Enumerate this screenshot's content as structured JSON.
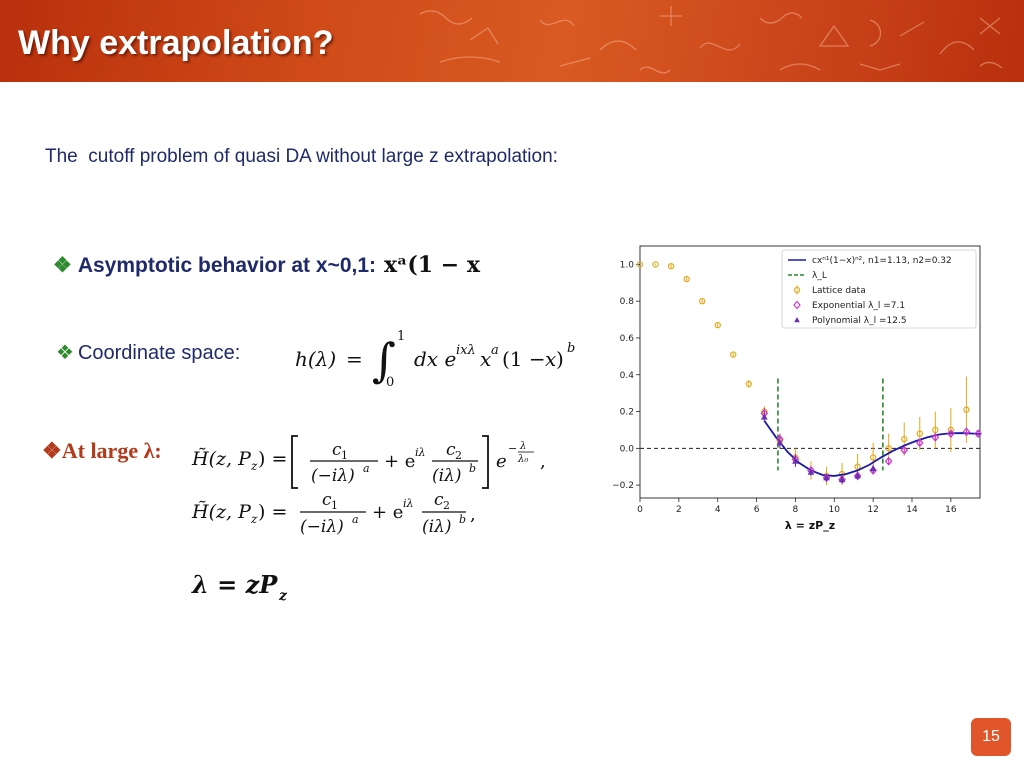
{
  "slide": {
    "title": "Why extrapolation?",
    "intro": "The  cutoff problem of quasi DA without large z extrapolation:",
    "page_number": "15"
  },
  "bullets": {
    "marker": "❖",
    "asymptotic_label": "Asymptotic behavior at x~0,1:",
    "asymptotic_expr": "xᵃ(1 − x",
    "coordinate_label": "Coordinate space:",
    "large_lambda_label": "At large λ:"
  },
  "equations": {
    "coordinate_space": "h(λ) = ∫₀¹ dx e^{ixλ} x^a (1−x)^b",
    "large_lambda_1": "H̃(z,P_z) = [ c₁/(−iλ)^a + e^{iλ} c₂/(iλ)^b ] e^{−λ/λ₀},",
    "large_lambda_2": "H̃(z,P_z) = c₁/(−iλ)^a + e^{iλ} c₂/(iλ)^b,",
    "lambda_def": "λ = zP_z"
  },
  "colors": {
    "banner": "#c9431a",
    "text_blue": "#1f2a6b",
    "marker_green": "#2f8a2f",
    "large_lambda_red": "#b33a1a",
    "page_box": "#e0562a",
    "fit_curve": "#1a1aa8",
    "lambda_l": "#2a8a2a",
    "lattice": "#e6a817",
    "exponential": "#cc33cc",
    "polynomial": "#6b2fb3"
  },
  "chart_data": {
    "type": "scatter",
    "xlabel": "λ = zP_z",
    "ylabel": "",
    "xlim": [
      0,
      17.5
    ],
    "ylim": [
      -0.27,
      1.1
    ],
    "x_ticks": [
      0,
      2,
      4,
      6,
      8,
      10,
      12,
      14,
      16
    ],
    "y_ticks": [
      1.0,
      0.8,
      0.6,
      0.4,
      0.2,
      0.0,
      -0.2
    ],
    "grid": false,
    "legend_position": "top-right",
    "legend": [
      "cxⁿ¹(1−x)ⁿ², n1=1.13, n2=0.32",
      "λ_L",
      "Lattice data",
      "Exponential λ_l =7.1",
      "Polynomial λ_l =12.5"
    ],
    "lattice": {
      "x": [
        0.0,
        0.8,
        1.6,
        2.4,
        3.2,
        4.0,
        4.8,
        5.6,
        6.4,
        7.2,
        8.0,
        8.8,
        9.6,
        10.4,
        11.2,
        12.0,
        12.8,
        13.6,
        14.4,
        15.2,
        16.0,
        16.8
      ],
      "y": [
        1.0,
        1.0,
        0.99,
        0.92,
        0.8,
        0.67,
        0.51,
        0.35,
        0.2,
        0.04,
        -0.05,
        -0.12,
        -0.15,
        -0.14,
        -0.1,
        -0.05,
        0.0,
        0.05,
        0.08,
        0.1,
        0.1,
        0.21
      ],
      "err": [
        0.0,
        0.005,
        0.01,
        0.01,
        0.01,
        0.01,
        0.01,
        0.02,
        0.03,
        0.04,
        0.05,
        0.05,
        0.05,
        0.06,
        0.07,
        0.08,
        0.08,
        0.09,
        0.09,
        0.1,
        0.12,
        0.18
      ]
    },
    "exponential": {
      "x": [
        6.4,
        7.2,
        8.0,
        8.8,
        9.6,
        10.4,
        11.2,
        12.0,
        12.8,
        13.6,
        14.4,
        15.2,
        16.0,
        16.8,
        17.4
      ],
      "y": [
        0.19,
        0.05,
        -0.06,
        -0.12,
        -0.16,
        -0.17,
        -0.15,
        -0.12,
        -0.07,
        -0.01,
        0.03,
        0.06,
        0.08,
        0.09,
        0.08
      ],
      "err": [
        0.03,
        0.03,
        0.03,
        0.02,
        0.02,
        0.02,
        0.02,
        0.02,
        0.02,
        0.02,
        0.02,
        0.02,
        0.02,
        0.02,
        0.02
      ]
    },
    "polynomial": {
      "x": [
        6.4,
        7.2,
        8.0,
        8.8,
        9.6,
        10.4,
        11.2,
        12.0
      ],
      "y": [
        0.17,
        0.03,
        -0.07,
        -0.13,
        -0.16,
        -0.17,
        -0.15,
        -0.11
      ],
      "err": [
        0.03,
        0.03,
        0.03,
        0.02,
        0.02,
        0.02,
        0.02,
        0.02
      ]
    },
    "lambda_L": [
      7.1,
      12.5
    ],
    "fit_curve": {
      "x": [
        6.4,
        7.0,
        7.6,
        8.2,
        8.8,
        9.4,
        10.0,
        10.6,
        11.2,
        11.8,
        12.4,
        13.0,
        13.6,
        14.2,
        14.8,
        15.4,
        16.0,
        16.6,
        17.2,
        17.5
      ],
      "y": [
        0.15,
        0.06,
        -0.02,
        -0.08,
        -0.12,
        -0.145,
        -0.15,
        -0.14,
        -0.12,
        -0.09,
        -0.05,
        -0.015,
        0.015,
        0.04,
        0.06,
        0.075,
        0.082,
        0.083,
        0.08,
        0.078
      ]
    },
    "reference_line_y": 0.0
  }
}
